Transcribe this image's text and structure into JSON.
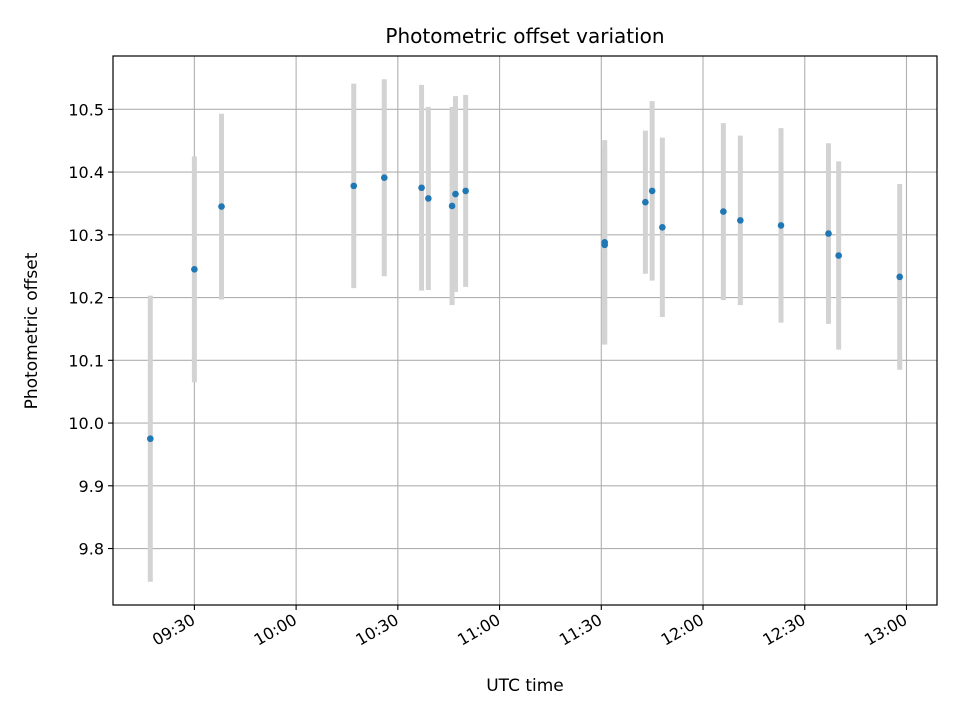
{
  "chart_data": {
    "type": "scatter",
    "title": "Photometric offset variation",
    "xlabel": "UTC time",
    "ylabel": "Photometric offset",
    "grid": true,
    "colors": {
      "point": "#1f77b4",
      "errorbar": "#d3d3d3",
      "grid": "#b0b0b0"
    },
    "xlim": [
      "09:06",
      "13:09"
    ],
    "ylim": [
      9.71,
      10.585
    ],
    "x_ticks": [
      "09:30",
      "10:00",
      "10:30",
      "11:00",
      "11:30",
      "12:00",
      "12:30",
      "13:00"
    ],
    "y_ticks": [
      "9.8",
      "9.9",
      "10.0",
      "10.1",
      "10.2",
      "10.3",
      "10.4",
      "10.5"
    ],
    "series": [
      {
        "x": [
          "09:17",
          "09:30",
          "09:38",
          "10:17",
          "10:26",
          "10:37",
          "10:39",
          "10:46",
          "10:47",
          "10:50",
          "11:31",
          "11:31",
          "11:43",
          "11:45",
          "11:48",
          "12:06",
          "12:11",
          "12:23",
          "12:37",
          "12:40",
          "12:58"
        ],
        "y": [
          9.975,
          10.245,
          10.345,
          10.378,
          10.391,
          10.375,
          10.358,
          10.346,
          10.365,
          10.37,
          10.288,
          10.284,
          10.352,
          10.37,
          10.312,
          10.337,
          10.323,
          10.315,
          10.302,
          10.267,
          10.233
        ],
        "y_error": [
          0.228,
          0.18,
          0.148,
          0.163,
          0.157,
          0.164,
          0.146,
          0.158,
          0.156,
          0.153,
          0.163,
          0.157,
          0.114,
          0.143,
          0.143,
          0.141,
          0.135,
          0.155,
          0.144,
          0.15,
          0.148
        ]
      }
    ]
  }
}
